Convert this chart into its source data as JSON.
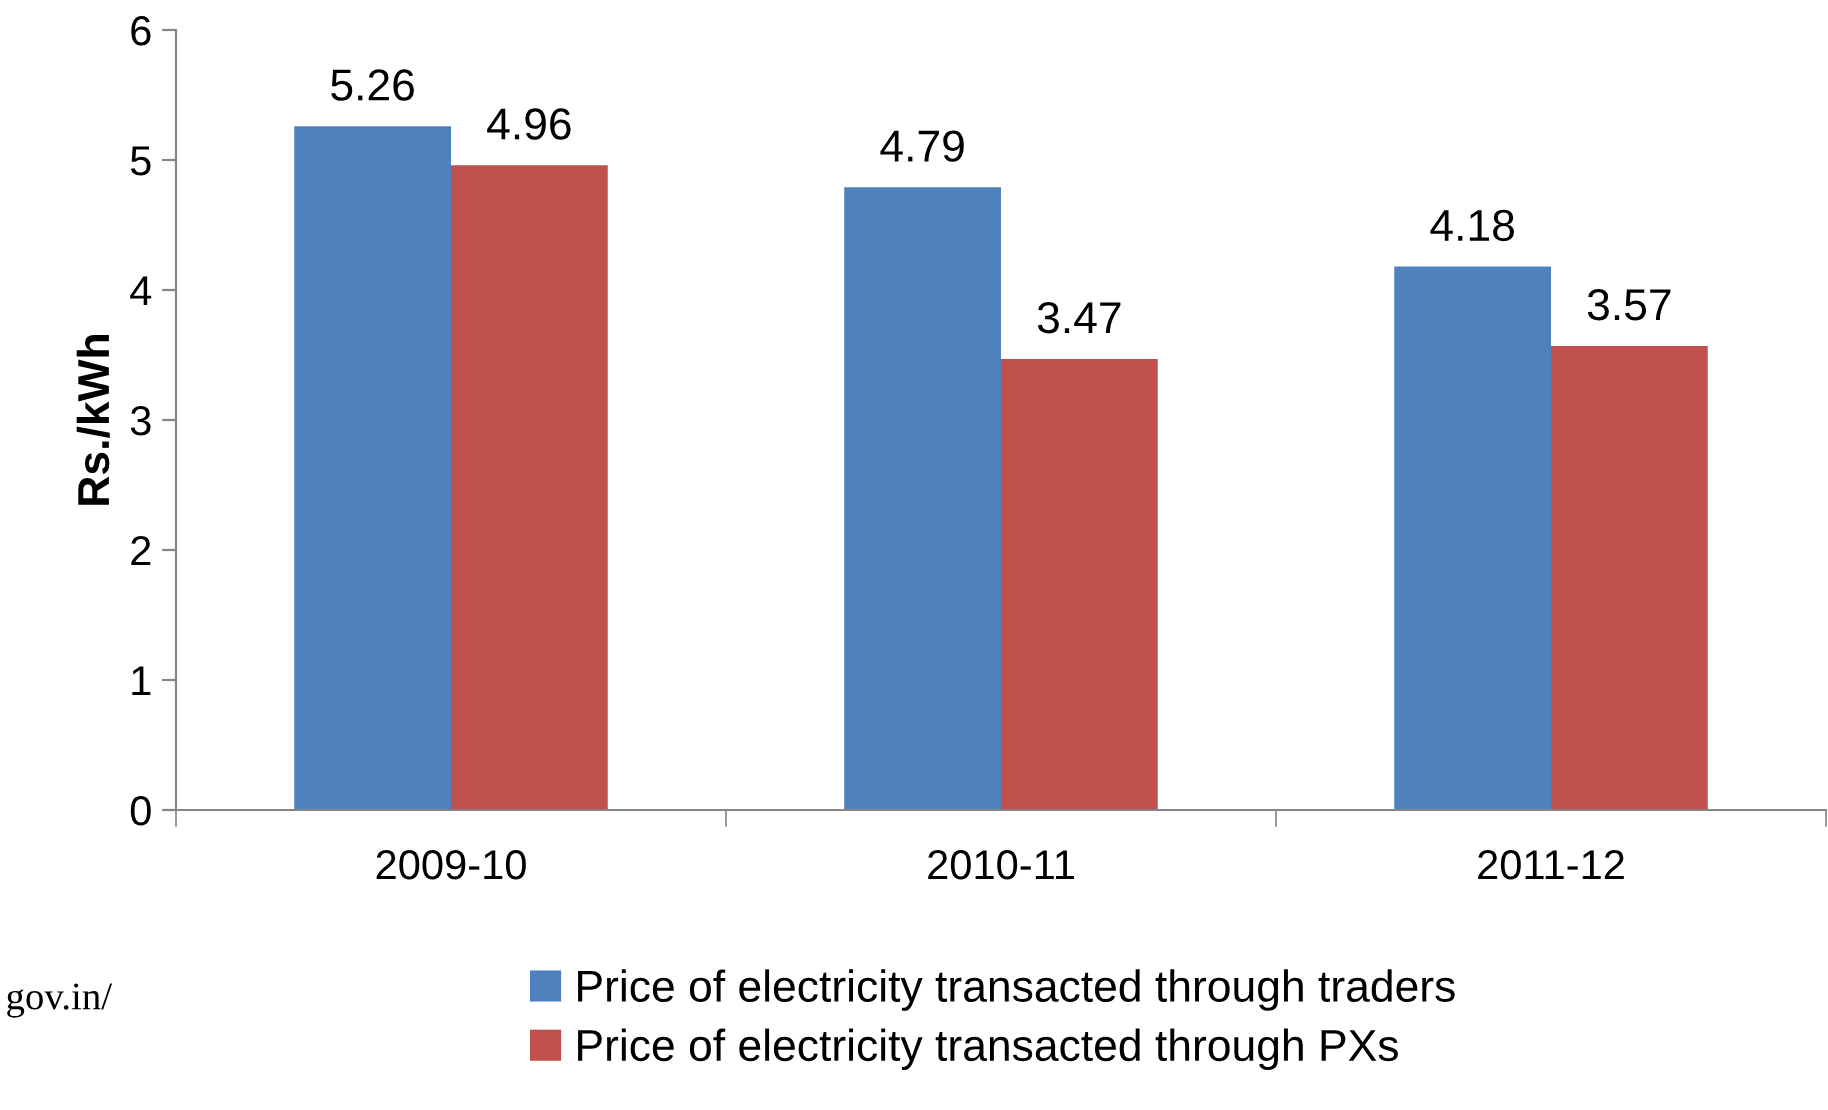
{
  "chart_data": {
    "type": "bar",
    "ylabel": "Rs./kWh",
    "categories": [
      "2009-10",
      "2010-11",
      "2011-12"
    ],
    "series": [
      {
        "name": "Price of electricity transacted through traders",
        "color": "#4f81bd",
        "values": [
          5.26,
          4.79,
          4.18
        ]
      },
      {
        "name": "Price of electricity transacted through PXs",
        "color": "#c0504d",
        "values": [
          4.96,
          3.47,
          3.57
        ]
      }
    ],
    "ylim": [
      0,
      6
    ],
    "yticks": [
      0,
      1,
      2,
      3,
      4,
      5,
      6
    ],
    "grid": false,
    "legend": "bottom",
    "data_labels": true,
    "annotations": [
      "gov.in/"
    ]
  }
}
